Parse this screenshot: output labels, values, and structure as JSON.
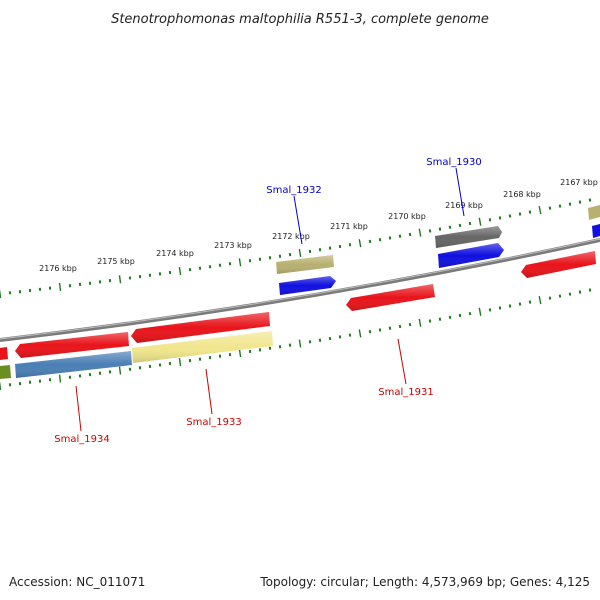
{
  "title": "Stenotrophomonas maltophilia R551-3, complete genome",
  "footer": {
    "accession": "Accession: NC_011071",
    "summary": "Topology: circular; Length: 4,573,969 bp; Genes: 4,125"
  },
  "colors": {
    "backbone": "#7a7a7a",
    "tick": "#1f7a1f",
    "forward_label": "#0000cc",
    "reverse_label": "#cc0000",
    "red": "#e8141a",
    "blue": "#1010e0",
    "khaki": "#b8b070",
    "gray": "#666666",
    "steel": "#4a7fb5",
    "cream": "#f0e68c",
    "olive": "#6b8e23"
  },
  "kbp_labels": [
    "2176 kbp",
    "2175 kbp",
    "2174 kbp",
    "2173 kbp",
    "2172 kbp",
    "2171 kbp",
    "2170 kbp",
    "2169 kbp",
    "2168 kbp",
    "2167 kbp"
  ],
  "gene_labels": {
    "smal_1930": "Smal_1930",
    "smal_1931": "Smal_1931",
    "smal_1932": "Smal_1932",
    "smal_1933": "Smal_1933",
    "smal_1934": "Smal_1934"
  }
}
